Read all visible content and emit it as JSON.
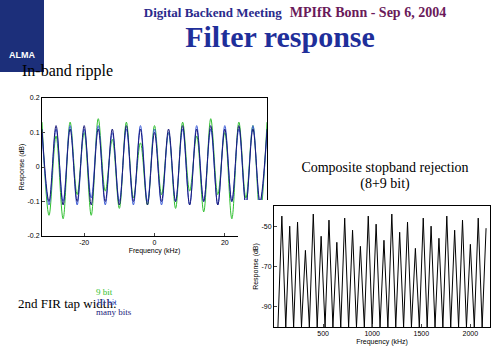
{
  "header": {
    "logo": "ALMA",
    "meeting": "Digital Backend Meeting",
    "venue": "MPIfR Bonn - Sep 6, 2004",
    "title": "Filter response"
  },
  "legend_title": "2nd FIR tap width:",
  "chart_data": [
    {
      "type": "line",
      "title": "In-band ripple",
      "xlabel": "Frequency (kHz)",
      "ylabel": "Response (dB)",
      "x": [
        -32,
        -30,
        -28,
        -26,
        -24,
        -22,
        -20,
        -18,
        -16,
        -14,
        -12,
        -10,
        -8,
        -6,
        -4,
        -2,
        0,
        2,
        4,
        6,
        8,
        10,
        12,
        14,
        16,
        18,
        20,
        22,
        24,
        26,
        28,
        30,
        32
      ],
      "xlim": [
        -32,
        32
      ],
      "xticks": [
        -20,
        0,
        20
      ],
      "ylim": [
        -0.2,
        0.2
      ],
      "yticks": [
        -0.2,
        -0.1,
        0,
        0.1,
        0.2
      ],
      "grid": false,
      "legend": "bottom left",
      "series": [
        {
          "name": "9 bit",
          "color": "#2fbf2f",
          "values": [
            0.13,
            -0.14,
            0.09,
            -0.15,
            0.13,
            -0.08,
            0.1,
            -0.14,
            0.14,
            -0.07,
            0.08,
            -0.12,
            0.13,
            -0.09,
            0.07,
            -0.11,
            0.12,
            -0.08,
            0.1,
            -0.12,
            0.13,
            -0.07,
            0.09,
            -0.13,
            0.14,
            -0.08,
            0.1,
            -0.15,
            0.13,
            -0.09,
            0.12,
            -0.14,
            0.13
          ]
        },
        {
          "name": "10 bit",
          "color": "#3f5fd8",
          "values": [
            0.1,
            -0.11,
            0.11,
            -0.1,
            0.12,
            -0.11,
            0.11,
            -0.09,
            0.12,
            -0.11,
            0.1,
            -0.1,
            0.11,
            -0.11,
            0.12,
            -0.1,
            0.11,
            -0.11,
            0.1,
            -0.1,
            0.11,
            -0.11,
            0.12,
            -0.1,
            0.11,
            -0.11,
            0.12,
            -0.1,
            0.11,
            -0.11,
            0.12,
            -0.11,
            0.1
          ]
        },
        {
          "name": "many bits",
          "color": "#1a1a7a",
          "values": [
            0.11,
            -0.1,
            0.12,
            -0.11,
            0.11,
            -0.1,
            0.12,
            -0.11,
            0.11,
            -0.1,
            0.11,
            -0.11,
            0.12,
            -0.1,
            0.11,
            -0.11,
            0.1,
            -0.1,
            0.11,
            -0.1,
            0.12,
            -0.11,
            0.11,
            -0.1,
            0.12,
            -0.11,
            0.11,
            -0.1,
            0.12,
            -0.11,
            0.11,
            -0.1,
            0.11
          ]
        }
      ]
    },
    {
      "type": "line",
      "title": "Composite stopband rejection (8+9 bit)",
      "xlabel": "Frequency (kHz)",
      "ylabel": "Response (dB)",
      "x": [
        40,
        80,
        120,
        160,
        200,
        240,
        280,
        320,
        360,
        400,
        440,
        480,
        520,
        560,
        600,
        640,
        680,
        720,
        760,
        800,
        840,
        880,
        920,
        960,
        1000,
        1040,
        1080,
        1120,
        1160,
        1200,
        1240,
        1280,
        1320,
        1360,
        1400,
        1440,
        1480,
        1520,
        1560,
        1600,
        1640,
        1680,
        1720,
        1760,
        1800,
        1840,
        1880,
        1920,
        1960,
        2000,
        2040,
        2080,
        2120,
        2160
      ],
      "xlim": [
        0,
        2200
      ],
      "xticks": [
        500,
        1000,
        1500,
        2000
      ],
      "ylim": [
        -100,
        -40
      ],
      "yticks": [
        -90,
        -70,
        -50
      ],
      "grid": false,
      "series": [
        {
          "color": "#000000",
          "values": [
            -100,
            -45,
            -100,
            -50,
            -100,
            -48,
            -100,
            -62,
            -100,
            -44,
            -100,
            -55,
            -100,
            -47,
            -100,
            -58,
            -100,
            -46,
            -100,
            -52,
            -100,
            -60,
            -100,
            -45,
            -100,
            -49,
            -100,
            -57,
            -100,
            -44,
            -100,
            -53,
            -100,
            -48,
            -100,
            -61,
            -100,
            -46,
            -100,
            -50,
            -100,
            -56,
            -100,
            -45,
            -100,
            -52,
            -100,
            -47,
            -100,
            -59,
            -100,
            -46,
            -100,
            -51
          ]
        }
      ]
    }
  ]
}
